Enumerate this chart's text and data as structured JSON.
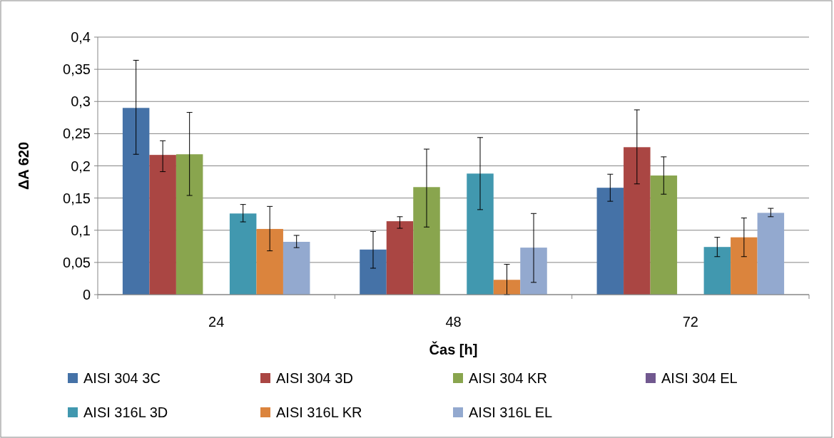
{
  "chart_data": {
    "type": "bar",
    "xlabel": "Čas [h]",
    "ylabel": "ΔA 620",
    "categories": [
      "24",
      "48",
      "72"
    ],
    "ylim": [
      0,
      0.4
    ],
    "yticks": [
      0,
      {
        "value": 0.05,
        "label": "0,05"
      },
      {
        "value": 0.1,
        "label": "0,1"
      },
      {
        "value": 0.15,
        "label": "0,15"
      },
      {
        "value": 0.2,
        "label": "0,2"
      },
      {
        "value": 0.25,
        "label": "0,25"
      },
      {
        "value": 0.3,
        "label": "0,3"
      },
      {
        "value": 0.35,
        "label": "0,35"
      },
      {
        "value": 0.4,
        "label": "0,4"
      }
    ],
    "grid": "y",
    "legend": "bottom",
    "series": [
      {
        "name": "AISI 304 3C",
        "color": "#4572a7",
        "values": [
          0.29,
          0.07,
          0.166
        ],
        "errors": [
          [
            0.218,
            0.364
          ],
          [
            0.041,
            0.098
          ],
          [
            0.145,
            0.187
          ]
        ]
      },
      {
        "name": "AISI 304 3D",
        "color": "#aa4643",
        "values": [
          0.217,
          0.114,
          0.229
        ],
        "errors": [
          [
            0.191,
            0.239
          ],
          [
            0.103,
            0.121
          ],
          [
            0.172,
            0.287
          ]
        ]
      },
      {
        "name": "AISI 304 KR",
        "color": "#89a54e",
        "values": [
          0.218,
          0.167,
          0.185
        ],
        "errors": [
          [
            0.154,
            0.283
          ],
          [
            0.105,
            0.226
          ],
          [
            0.156,
            0.214
          ]
        ]
      },
      {
        "name": "AISI 304 EL",
        "color": "#71588f",
        "values": [
          null,
          null,
          null
        ]
      },
      {
        "name": "AISI 316L 3D",
        "color": "#4198af",
        "values": [
          0.126,
          0.188,
          0.074
        ],
        "errors": [
          [
            0.113,
            0.14
          ],
          [
            0.132,
            0.244
          ],
          [
            0.059,
            0.089
          ]
        ]
      },
      {
        "name": "AISI 316L KR",
        "color": "#db843d",
        "values": [
          0.102,
          0.023,
          0.089
        ],
        "errors": [
          [
            0.068,
            0.137
          ],
          [
            0,
            0.047
          ],
          [
            0.059,
            0.119
          ]
        ]
      },
      {
        "name": "AISI 316L EL",
        "color": "#93a9cf",
        "values": [
          0.082,
          0.073,
          0.127
        ],
        "errors": [
          [
            0.073,
            0.092
          ],
          [
            0.019,
            0.126
          ],
          [
            0.121,
            0.134
          ]
        ]
      }
    ]
  }
}
